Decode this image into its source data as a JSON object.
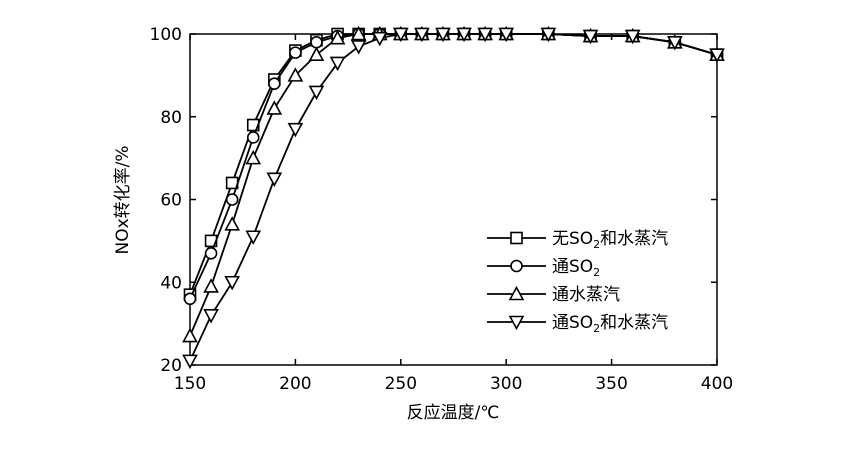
{
  "chart_data": {
    "type": "line",
    "title": "",
    "xlabel": "反应温度/℃",
    "ylabel": "NOx转化率/%",
    "xlim": [
      150,
      400
    ],
    "ylim": [
      20,
      100
    ],
    "xticks": [
      150,
      200,
      250,
      300,
      350,
      400
    ],
    "yticks": [
      20,
      40,
      60,
      80,
      100
    ],
    "grid": false,
    "legend_position": "center-right",
    "series": [
      {
        "name": "无SO2和水蒸汽",
        "marker": "square",
        "x": [
          150,
          160,
          170,
          180,
          190,
          200,
          210,
          220,
          230,
          240,
          250,
          260,
          270,
          280,
          290,
          300,
          320,
          340,
          360,
          380,
          400
        ],
        "values": [
          37,
          50,
          64,
          78,
          89,
          96,
          98.5,
          100,
          100,
          100,
          100,
          100,
          100,
          100,
          100,
          100,
          100,
          99.5,
          99.5,
          98,
          95
        ]
      },
      {
        "name": "通SO2",
        "marker": "circle",
        "x": [
          150,
          160,
          170,
          180,
          190,
          200,
          210,
          220,
          230,
          240,
          250,
          260,
          270,
          280,
          290,
          300,
          320,
          340,
          360,
          380,
          400
        ],
        "values": [
          36,
          47,
          60,
          75,
          88,
          95.5,
          98,
          99.5,
          100,
          100,
          100,
          100,
          100,
          100,
          100,
          100,
          100,
          99.5,
          99.5,
          98,
          95
        ]
      },
      {
        "name": "通水蒸汽",
        "marker": "triangle-up",
        "x": [
          150,
          160,
          170,
          180,
          190,
          200,
          210,
          220,
          230,
          240,
          250,
          260,
          270,
          280,
          290,
          300,
          320,
          340,
          360,
          380,
          400
        ],
        "values": [
          27,
          39,
          54,
          70,
          82,
          90,
          95,
          99,
          100,
          100,
          100,
          100,
          100,
          100,
          100,
          100,
          100,
          99.5,
          99.5,
          98,
          95
        ]
      },
      {
        "name": "通SO2和水蒸汽",
        "marker": "triangle-down",
        "x": [
          150,
          160,
          170,
          180,
          190,
          200,
          210,
          220,
          230,
          240,
          250,
          260,
          270,
          280,
          290,
          300,
          320,
          340,
          360,
          380,
          400
        ],
        "values": [
          21,
          32,
          40,
          51,
          65,
          77,
          86,
          93,
          97,
          99,
          100,
          100,
          100,
          100,
          100,
          100,
          100,
          99.5,
          99.5,
          98,
          95
        ]
      }
    ],
    "legend_labels": [
      {
        "main": "无SO",
        "sub": "2",
        "rest": "和水蒸汽"
      },
      {
        "main": "通SO",
        "sub": "2",
        "rest": ""
      },
      {
        "main": "通水蒸汽",
        "sub": "",
        "rest": ""
      },
      {
        "main": "通SO",
        "sub": "2",
        "rest": "和水蒸汽"
      }
    ]
  }
}
